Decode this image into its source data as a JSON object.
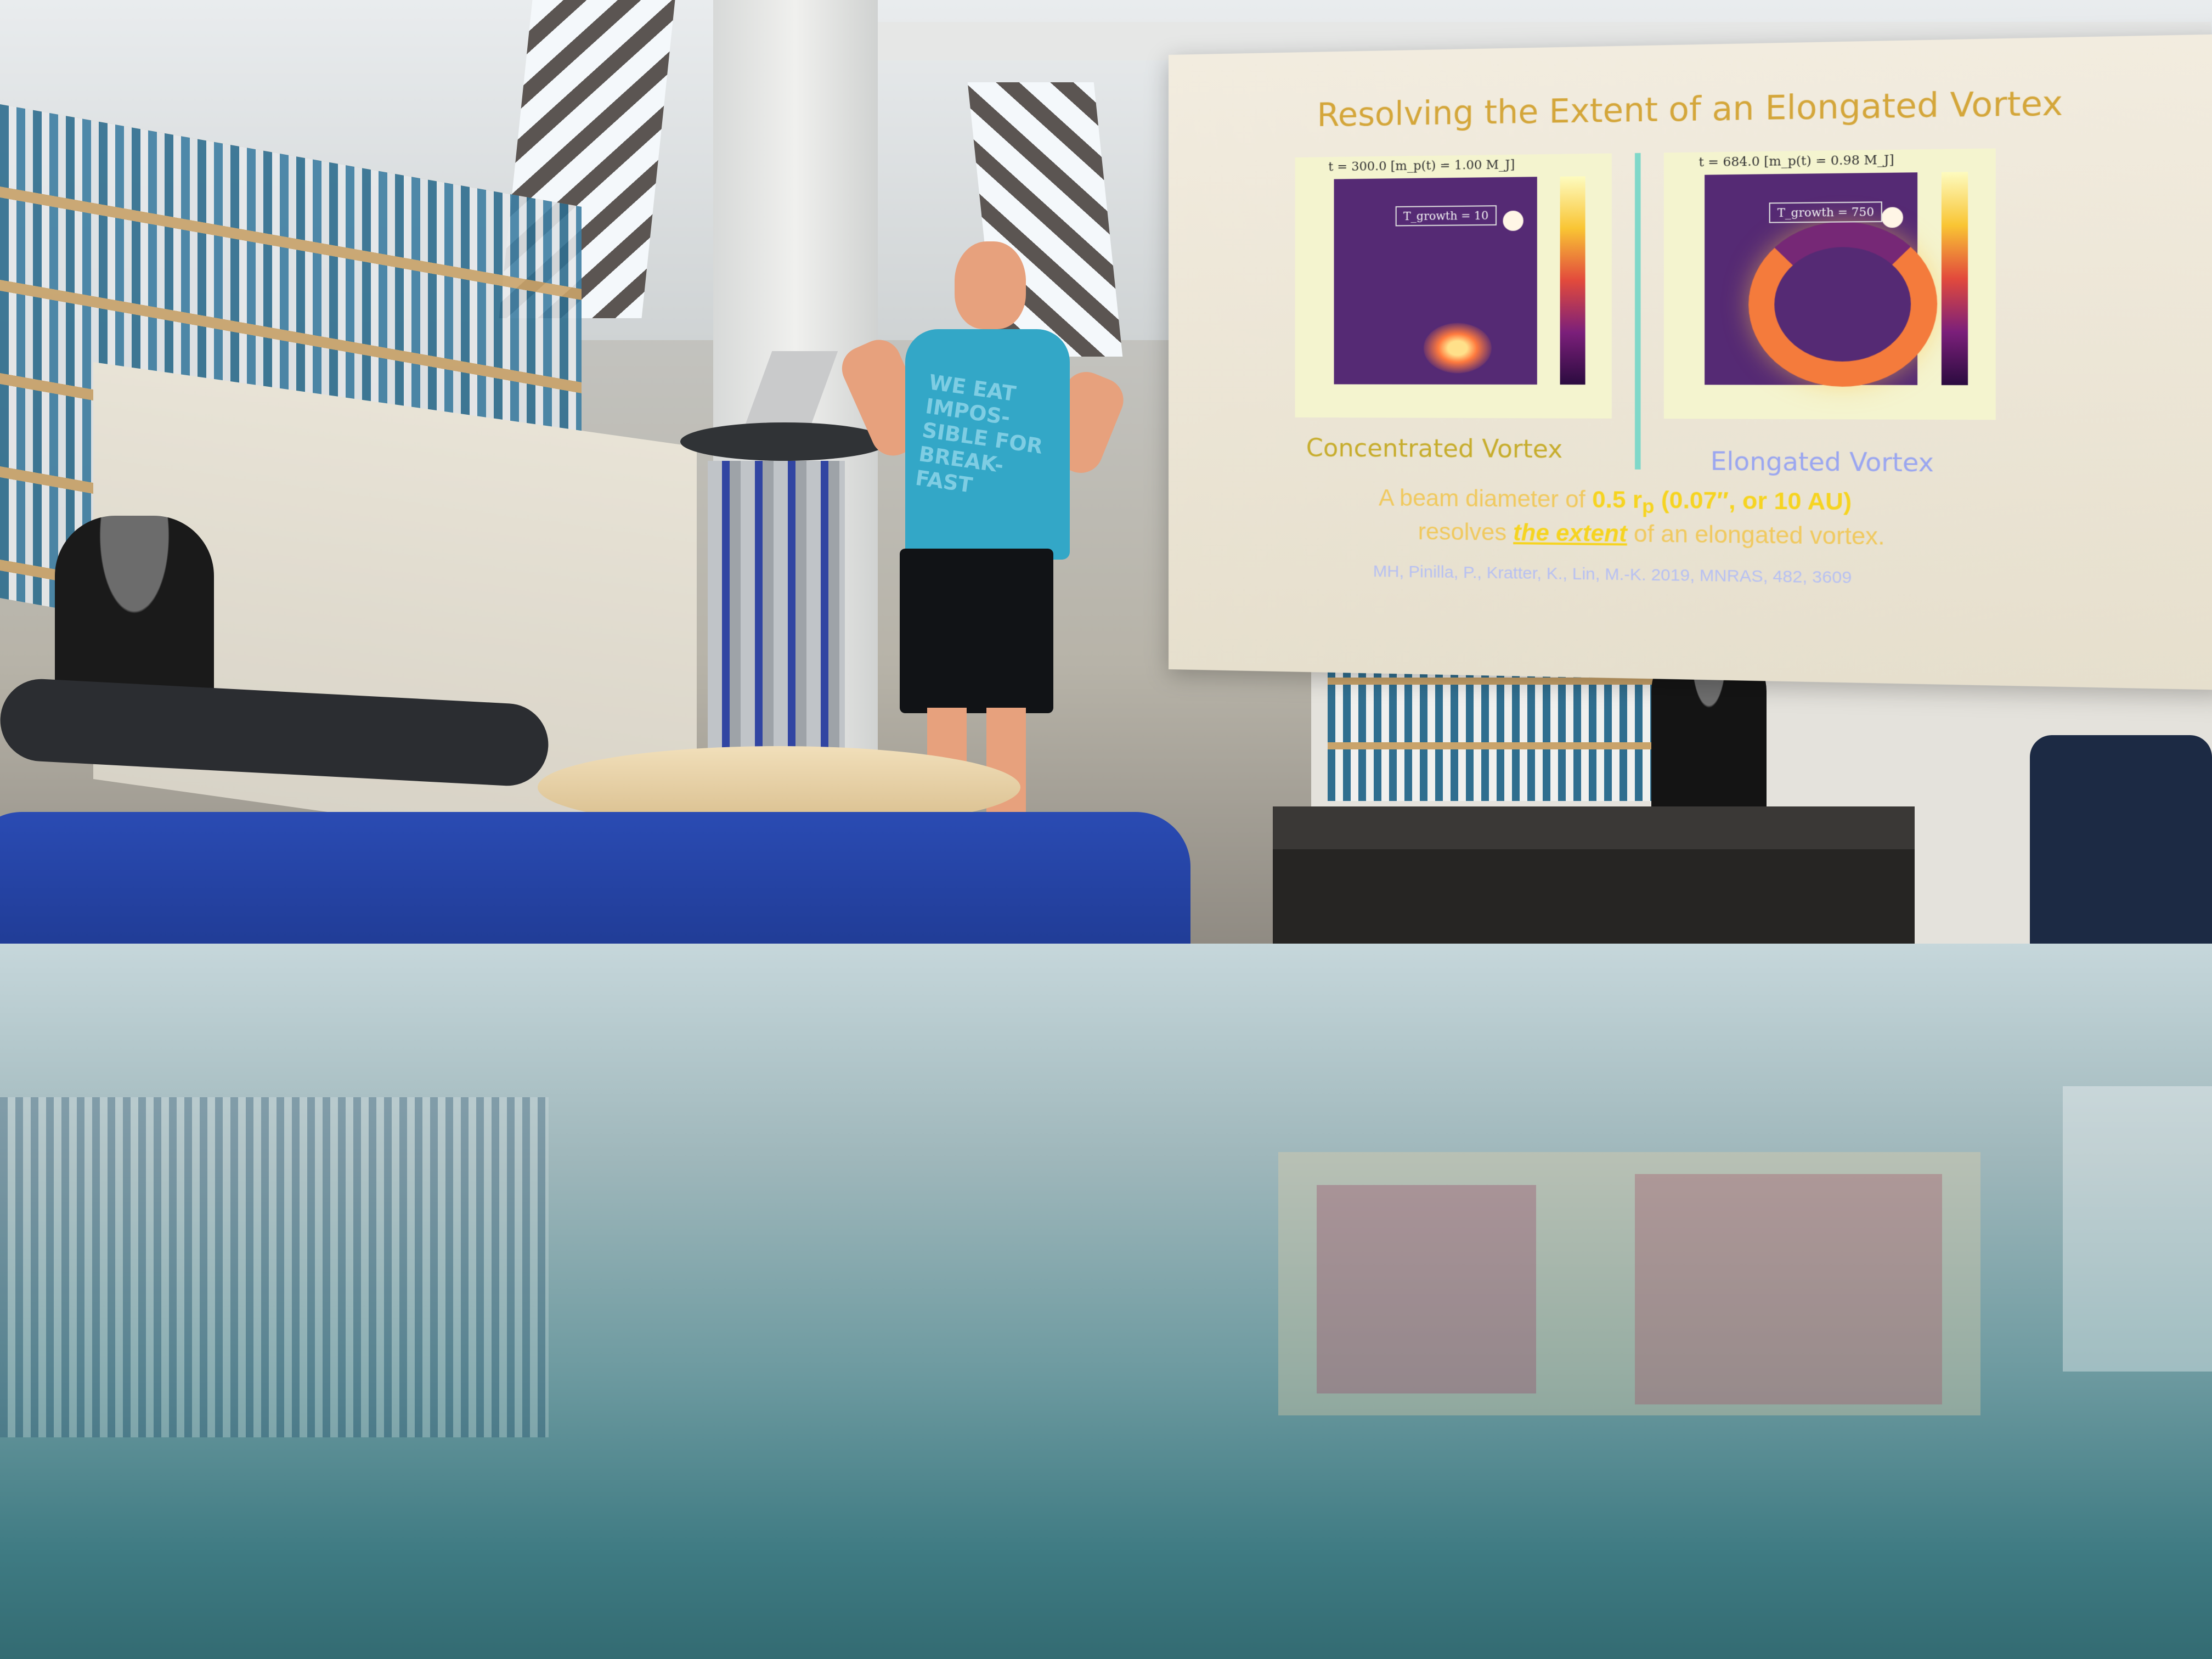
{
  "slide": {
    "title": "Resolving the Extent of an Elongated Vortex",
    "left_panel": {
      "header": "t = 300.0   [m_p(t) = 1.00 M_J]",
      "badge": "T_growth = 10",
      "caption": "Concentrated Vortex"
    },
    "right_panel": {
      "header": "t = 684.0   [m_p(t) = 0.98 M_J]",
      "badge": "T_growth = 750",
      "caption": "Elongated Vortex"
    },
    "beam_text": {
      "prefix": "A beam diameter of ",
      "highlight": "0.5 r",
      "subscript": "p",
      "rest": " (0.07″, or 10 AU)",
      "line2_prefix": "resolves ",
      "line2_emphasis": "the extent",
      "line2_suffix": " of an elongated vortex."
    },
    "citation": "MH, Pinilla, P., Kratter, K., Lin, M.-K. 2019, MNRAS, 482, 3609"
  },
  "presenter": {
    "shirt_text": "WE EAT IMPOS-SIBLE FOR BREAK-FAST"
  },
  "colors": {
    "title": "#d4a63a",
    "caption_left": "#c7ad2d",
    "caption_right": "#9aa6f0",
    "shirt": "#33a7c7",
    "chair": "#2a4bb3"
  }
}
